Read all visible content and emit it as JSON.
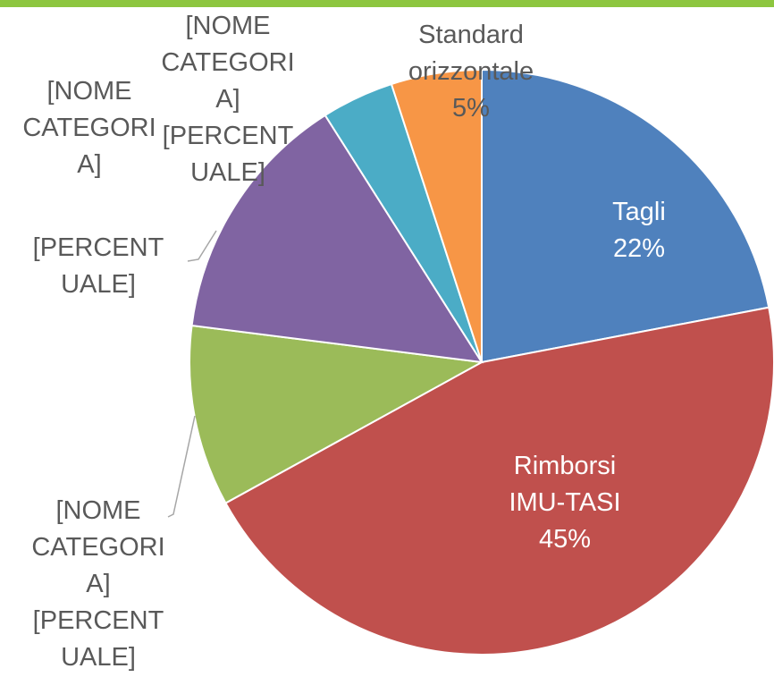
{
  "chart_data": {
    "type": "pie",
    "categories": [
      "Tagli",
      "Rimborsi IMU-TASI",
      "[NOME CATEGORIA]",
      "[NOME CATEGORIA]",
      "[NOME CATEGORIA]",
      "Standard orizzontale"
    ],
    "values": [
      22,
      45,
      10,
      14,
      4,
      5
    ],
    "colors": [
      "#4f81bd",
      "#c0504d",
      "#9bbb59",
      "#8064a2",
      "#4bacc6",
      "#f79646"
    ],
    "data_labels": [
      [
        "Tagli",
        "22%"
      ],
      [
        "Rimborsi IMU-TASI",
        "45%"
      ],
      [
        "[NOME CATEGORIA]",
        "[PERCENTUALE]"
      ],
      [
        "[NOME CATEGORIA]",
        "[PERCENTUALE]"
      ],
      [
        "[NOME CATEGORIA]",
        "[PERCENTUALE]"
      ],
      [
        "Standard orizzontale",
        "5%"
      ]
    ]
  }
}
